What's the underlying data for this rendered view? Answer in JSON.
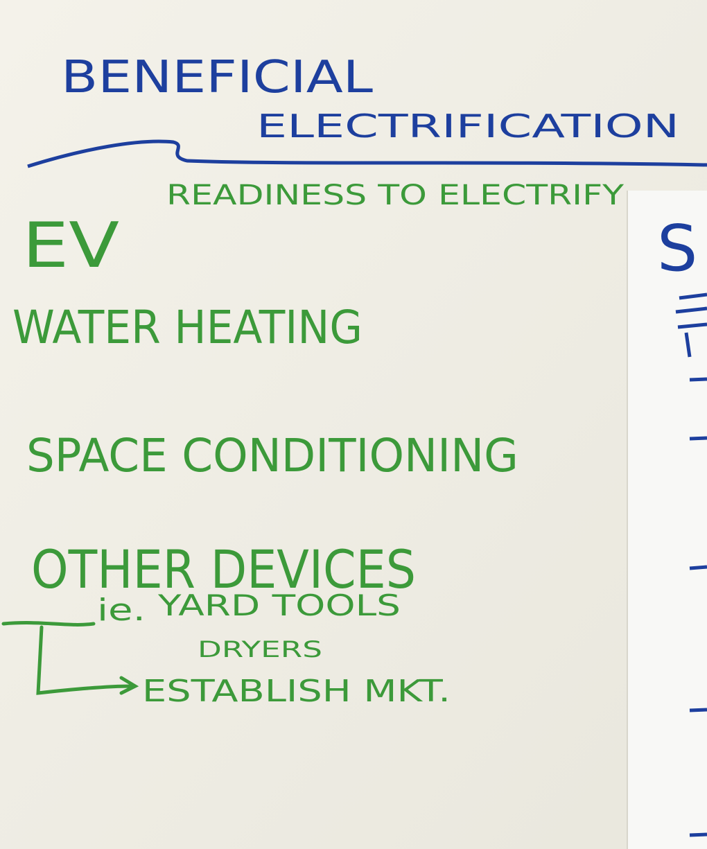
{
  "title": {
    "line1": "BENEFICIAL",
    "line2": "ELECTRIFICATION"
  },
  "subtitle": "READINESS TO ELECTRIFY",
  "items": [
    "EV",
    "WATER HEATING",
    "SPACE CONDITIONING",
    "OTHER DEVICES"
  ],
  "examples": {
    "prefix": "ie.",
    "entries": [
      "YARD TOOLS",
      "DRYERS"
    ]
  },
  "action": "ESTABLISH MKT.",
  "right_sheet": "S"
}
